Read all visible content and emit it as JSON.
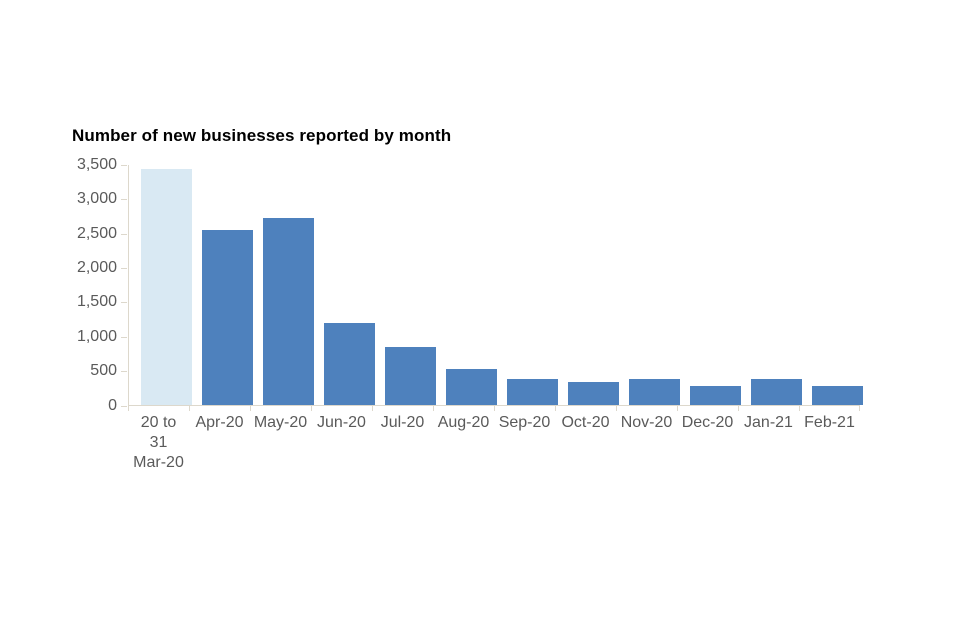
{
  "chart_data": {
    "type": "bar",
    "title": "Number of new businesses reported by month",
    "categories": [
      "20 to 31 Mar-20",
      "Apr-20",
      "May-20",
      "Jun-20",
      "Jul-20",
      "Aug-20",
      "Sep-20",
      "Oct-20",
      "Nov-20",
      "Dec-20",
      "Jan-21",
      "Feb-21"
    ],
    "xtick_display": [
      "20 to\n31\nMar-20",
      "Apr-20",
      "May-20",
      "Jun-20",
      "Jul-20",
      "Aug-20",
      "Sep-20",
      "Oct-20",
      "Nov-20",
      "Dec-20",
      "Jan-21",
      "Feb-21"
    ],
    "values": [
      3430,
      2540,
      2720,
      1190,
      840,
      520,
      385,
      335,
      375,
      275,
      375,
      270
    ],
    "xlabel": "",
    "ylabel": "",
    "ylim": [
      0,
      3500
    ],
    "ytick_interval": 500,
    "ytick_labels": [
      "3,500",
      "3,000",
      "2,500",
      "2,000",
      "1,500",
      "1,000",
      "500",
      "0"
    ],
    "grid": false,
    "legend": "none",
    "colors": {
      "bar_default": "#4e81bd",
      "bar_first_highlight": "#d9e9f3",
      "axis_line": "#ddd8cc",
      "axis_text": "#5a5a5a",
      "title_text": "#000000",
      "background": "#ffffff"
    }
  }
}
